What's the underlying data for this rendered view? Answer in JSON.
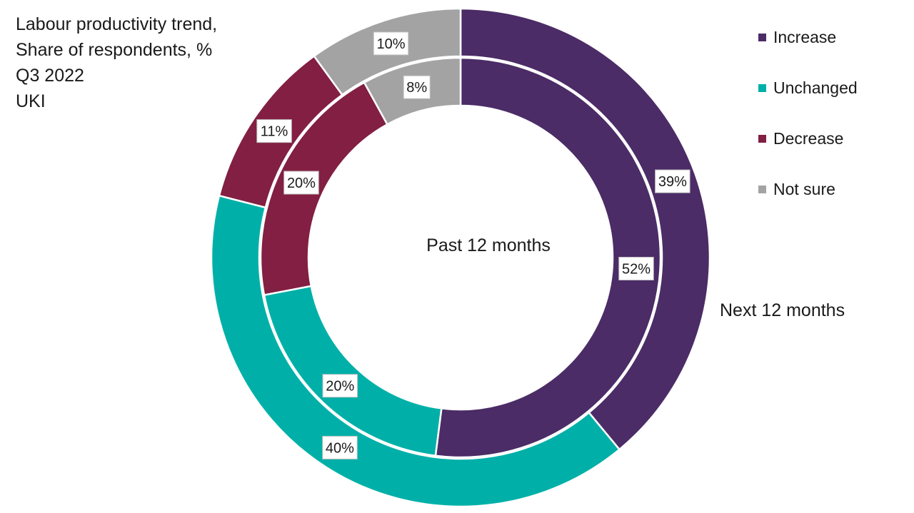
{
  "chart_data": {
    "type": "pie",
    "subtype": "nested-donut",
    "title_lines": [
      "Labour productivity trend,",
      "Share of respondents, %",
      "Q3 2022",
      "UKI"
    ],
    "categories": [
      "Increase",
      "Unchanged",
      "Decrease",
      "Not sure"
    ],
    "colors": [
      "#4b2c66",
      "#00b0a8",
      "#821f42",
      "#a3a3a3"
    ],
    "series": [
      {
        "name": "Next 12 months",
        "ring": "outer",
        "values": [
          39,
          40,
          11,
          10
        ],
        "labels": [
          "39%",
          "40%",
          "11%",
          "10%"
        ]
      },
      {
        "name": "Past 12 months",
        "ring": "inner",
        "values": [
          52,
          20,
          20,
          8
        ],
        "labels": [
          "52%",
          "20%",
          "20%",
          "8%"
        ]
      }
    ],
    "legend_position": "top-right"
  }
}
